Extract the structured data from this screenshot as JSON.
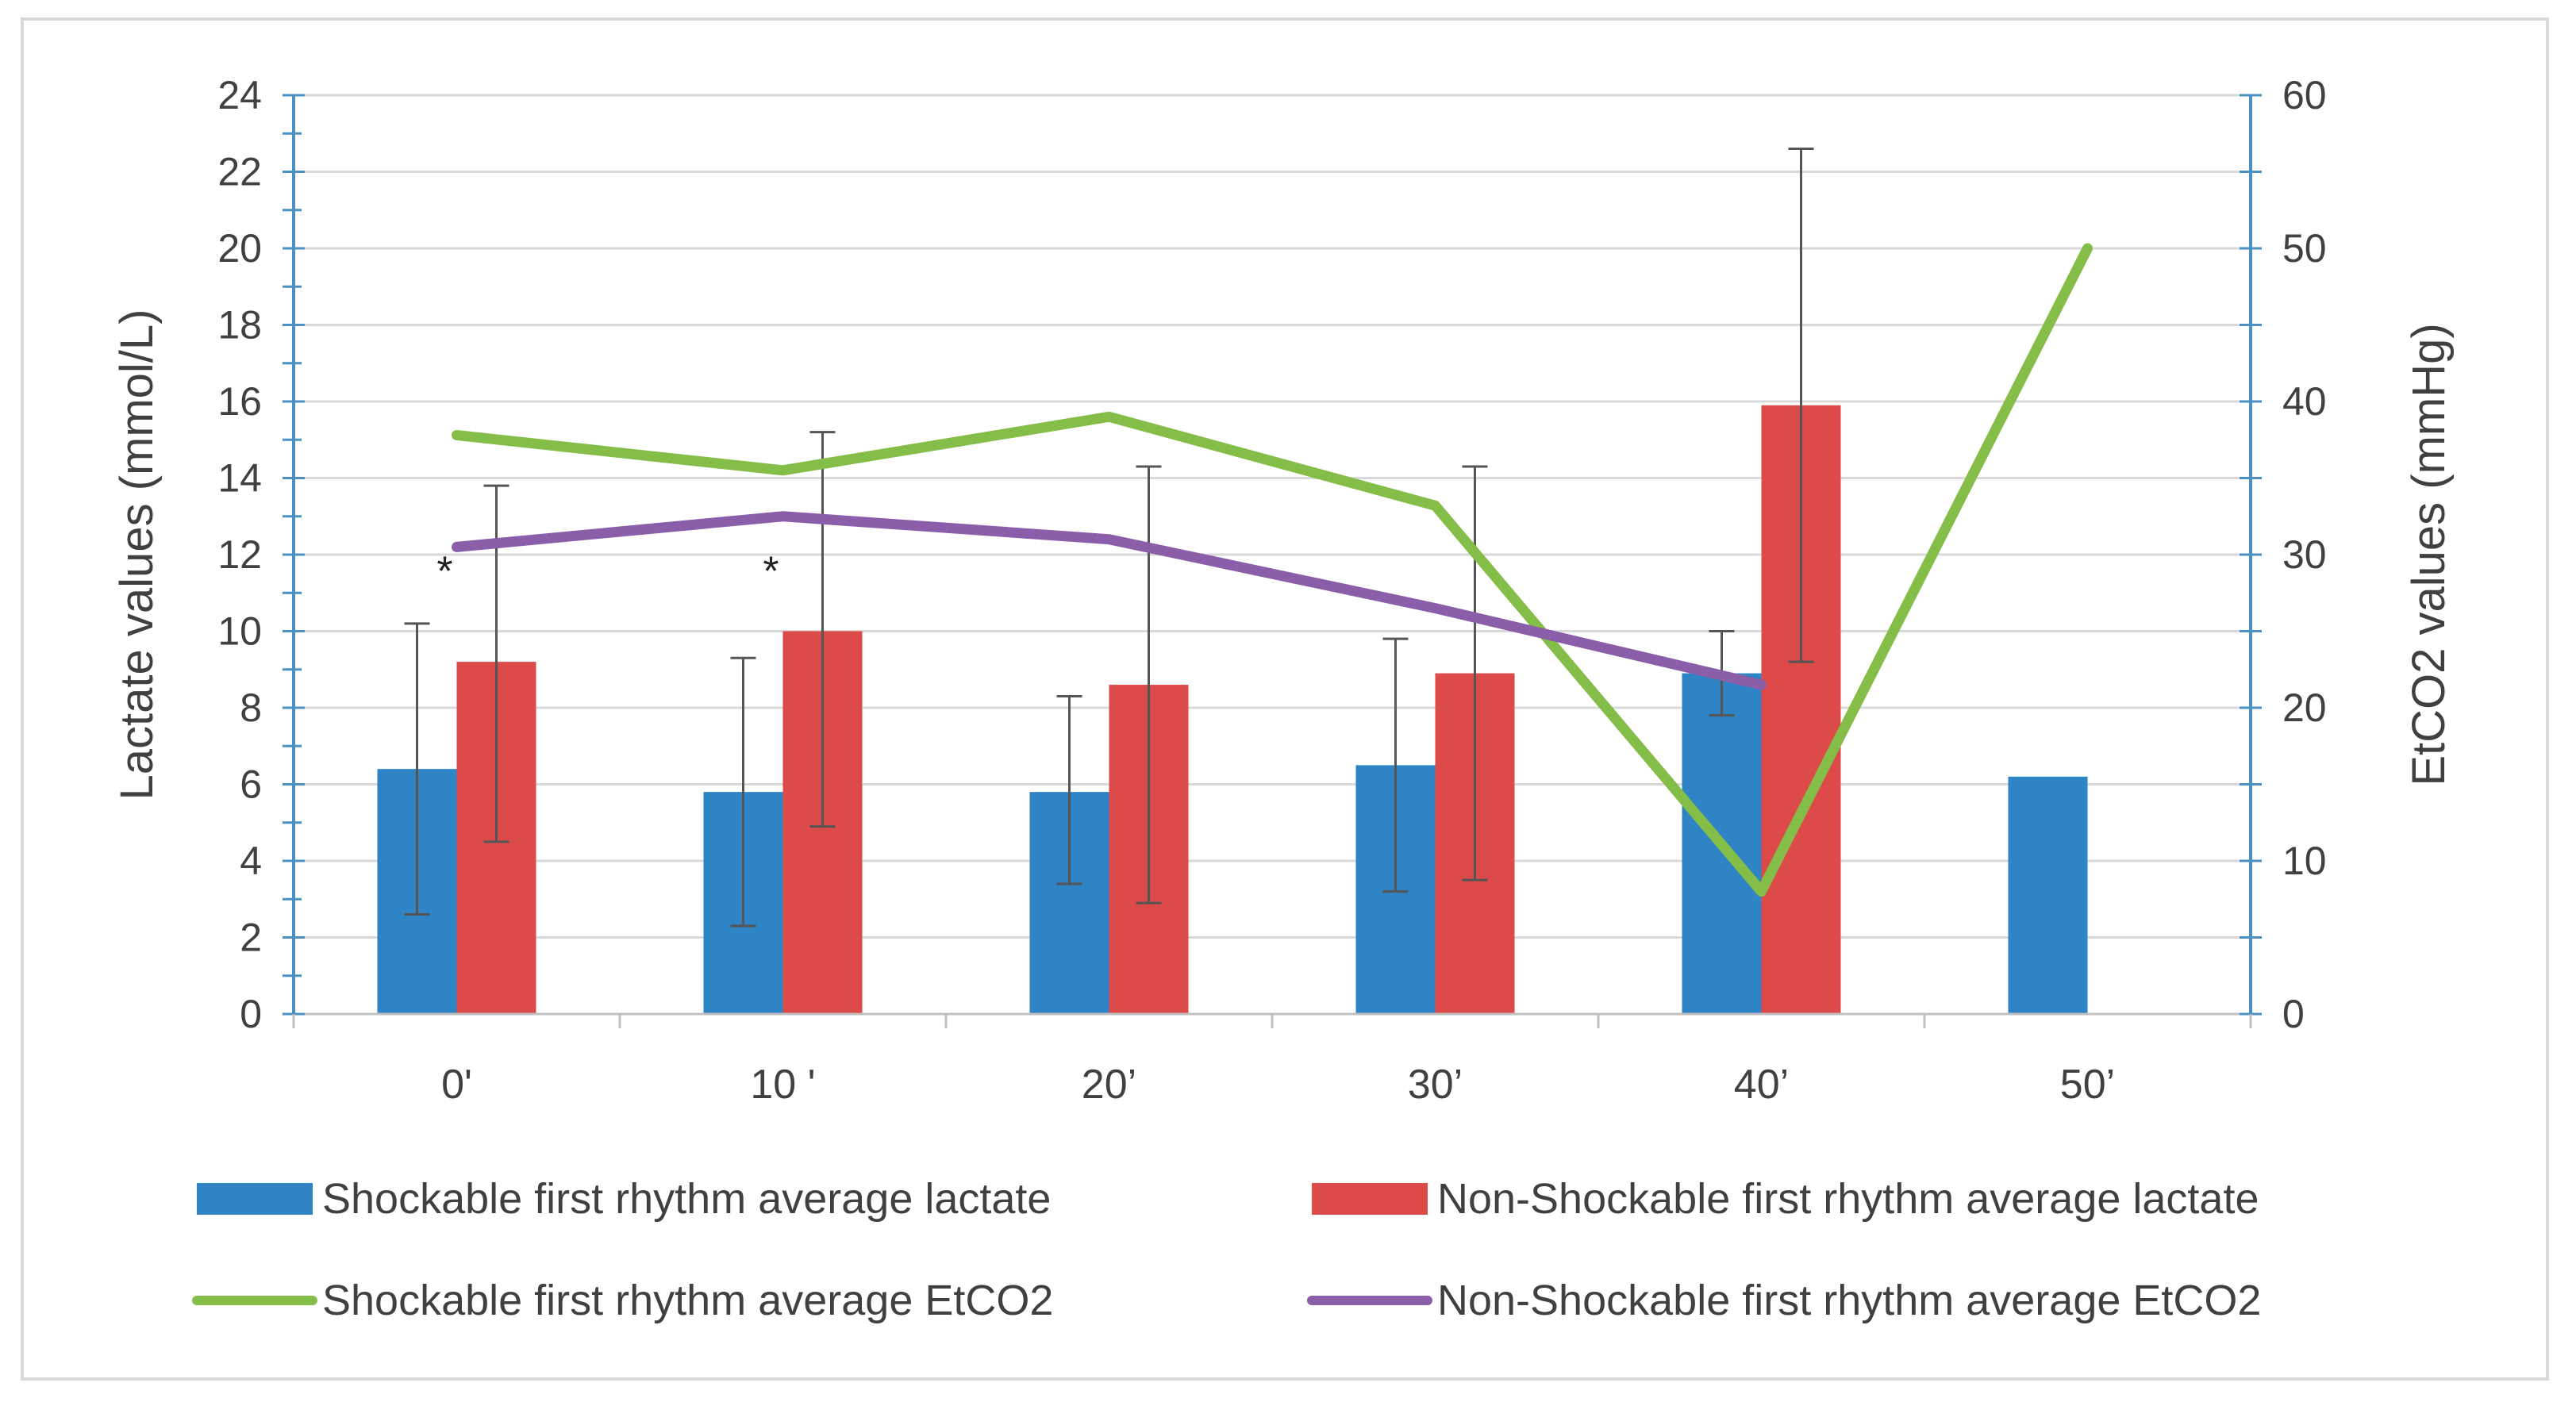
{
  "chart_data": {
    "type": "bar",
    "title": "",
    "categories": [
      "0'",
      "10 '",
      "20’",
      "30’",
      "40’",
      "50’"
    ],
    "ylabel": "Lactate values (mmol/L)",
    "y2label": "EtCO2 values (mmHg)",
    "ylim": [
      0,
      24
    ],
    "y2lim": [
      0,
      60
    ],
    "yticks": [
      "0",
      "2",
      "4",
      "6",
      "8",
      "10",
      "12",
      "14",
      "16",
      "18",
      "20",
      "22",
      "24"
    ],
    "y2ticks": [
      "0",
      "10",
      "20",
      "30",
      "40",
      "50",
      "60"
    ],
    "grid": true,
    "legend_position": "bottom",
    "bar_series": [
      {
        "name": "Shockable first rhythm average  lactate",
        "color": "#2e84c4",
        "values": [
          6.4,
          5.8,
          5.8,
          6.5,
          8.9,
          6.2
        ],
        "err_low": [
          2.6,
          2.3,
          3.4,
          3.2,
          7.8,
          null
        ],
        "err_high": [
          10.2,
          9.3,
          8.3,
          9.8,
          10.0,
          null
        ]
      },
      {
        "name": "Non-Shockable first rhythm average  lactate",
        "color": "#dd4a4a",
        "values": [
          9.2,
          10.0,
          8.6,
          8.9,
          15.9,
          null
        ],
        "err_low": [
          4.5,
          4.9,
          2.9,
          3.5,
          9.2,
          null
        ],
        "err_high": [
          13.8,
          15.2,
          14.3,
          14.3,
          22.6,
          null
        ]
      }
    ],
    "line_series": [
      {
        "name": "Shockable first rhythm average EtCO2",
        "color": "#84bd48",
        "axis": "right",
        "values": [
          37.8,
          35.5,
          39.0,
          33.2,
          8.0,
          50.0
        ]
      },
      {
        "name": "Non-Shockable first rhythm average  EtCO2",
        "color": "#8a5ea9",
        "axis": "right",
        "values": [
          30.5,
          32.5,
          31.0,
          26.5,
          21.5,
          null
        ]
      }
    ],
    "annotations": [
      {
        "text": "*",
        "category": "0'"
      },
      {
        "text": "*",
        "category": "10 '"
      }
    ]
  }
}
